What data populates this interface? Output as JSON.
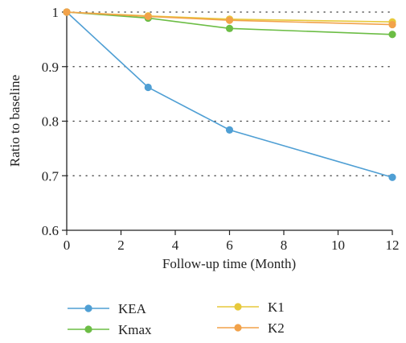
{
  "chart_data": {
    "type": "line",
    "title": "",
    "xlabel": "Follow-up time (Month)",
    "ylabel": "Ratio to baseline",
    "xlim": [
      0,
      12
    ],
    "ylim": [
      0.6,
      1.0
    ],
    "x_ticks": [
      0,
      2,
      4,
      6,
      8,
      10,
      12
    ],
    "y_ticks": [
      0.6,
      0.7,
      0.8,
      0.9,
      1.0
    ],
    "x_tick_labels": [
      "0",
      "2",
      "4",
      "6",
      "8",
      "10",
      "12"
    ],
    "y_tick_labels": [
      "0.6",
      "0.7",
      "0.8",
      "0.9",
      "1"
    ],
    "grid": "horizontal-dotted",
    "legend_position": "bottom",
    "x": [
      0,
      3,
      6,
      12
    ],
    "series": [
      {
        "name": "KEA",
        "color": "#4f9fd4",
        "values": [
          1.0,
          0.862,
          0.784,
          0.697
        ]
      },
      {
        "name": "Kmax",
        "color": "#6cbd45",
        "values": [
          1.0,
          0.989,
          0.97,
          0.959
        ]
      },
      {
        "name": "K1",
        "color": "#e7c93b",
        "values": [
          1.0,
          0.993,
          0.987,
          0.982
        ]
      },
      {
        "name": "K2",
        "color": "#f2a24a",
        "values": [
          1.0,
          0.992,
          0.985,
          0.977
        ]
      }
    ]
  }
}
